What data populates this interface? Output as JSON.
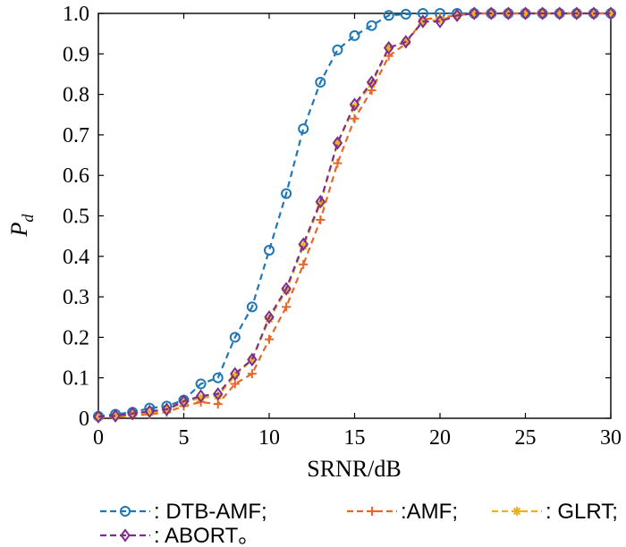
{
  "chart_data": {
    "type": "line",
    "title": "",
    "xlabel": "SRNR/dB",
    "ylabel_main": "P",
    "ylabel_sub": "d",
    "xlim": [
      0,
      30
    ],
    "ylim": [
      0,
      1.0
    ],
    "xticks": [
      0,
      5,
      10,
      15,
      20,
      25,
      30
    ],
    "yticks": [
      0,
      0.1,
      0.2,
      0.3,
      0.4,
      0.5,
      0.6,
      0.7,
      0.8,
      0.9,
      1.0
    ],
    "ytick_labels": [
      "0",
      "0.1",
      "0.2",
      "0.3",
      "0.4",
      "0.5",
      "0.6",
      "0.7",
      "0.8",
      "0.9",
      "1.0"
    ],
    "grid": false,
    "legend_position": "bottom",
    "x": [
      0,
      1,
      2,
      3,
      4,
      5,
      6,
      7,
      8,
      9,
      10,
      11,
      12,
      13,
      14,
      15,
      16,
      17,
      18,
      19,
      20,
      21,
      22,
      23,
      24,
      25,
      26,
      27,
      28,
      29,
      30
    ],
    "series": [
      {
        "name": ": DTB-AMF;",
        "color": "#1f77b4",
        "marker": "circle",
        "values": [
          0.005,
          0.01,
          0.015,
          0.025,
          0.03,
          0.045,
          0.085,
          0.1,
          0.2,
          0.275,
          0.415,
          0.555,
          0.715,
          0.83,
          0.91,
          0.945,
          0.97,
          0.995,
          0.998,
          1.0,
          1.0,
          1.0,
          1.0,
          1.0,
          1.0,
          1.0,
          1.0,
          1.0,
          1.0,
          1.0,
          1.0
        ]
      },
      {
        "name": ":AMF;",
        "color": "#e8662a",
        "marker": "plus",
        "values": [
          0.002,
          0.003,
          0.007,
          0.01,
          0.015,
          0.03,
          0.04,
          0.035,
          0.085,
          0.11,
          0.195,
          0.275,
          0.38,
          0.49,
          0.63,
          0.74,
          0.81,
          0.895,
          0.925,
          0.985,
          0.99,
          0.995,
          1.0,
          1.0,
          1.0,
          1.0,
          1.0,
          1.0,
          1.0,
          1.0,
          1.0
        ]
      },
      {
        "name": ": GLRT;",
        "color": "#edb120",
        "marker": "star",
        "values": [
          0.003,
          0.005,
          0.01,
          0.015,
          0.02,
          0.04,
          0.05,
          0.055,
          0.105,
          0.145,
          0.245,
          0.315,
          0.425,
          0.53,
          0.68,
          0.77,
          0.825,
          0.915,
          0.93,
          0.98,
          0.985,
          0.995,
          1.0,
          1.0,
          1.0,
          1.0,
          1.0,
          1.0,
          1.0,
          1.0,
          1.0
        ]
      },
      {
        "name": ": ABORT。",
        "color": "#7e2f8e",
        "marker": "diamond",
        "values": [
          0.004,
          0.006,
          0.012,
          0.017,
          0.022,
          0.042,
          0.055,
          0.06,
          0.11,
          0.145,
          0.25,
          0.32,
          0.43,
          0.535,
          0.68,
          0.775,
          0.83,
          0.915,
          0.93,
          0.98,
          0.98,
          0.995,
          1.0,
          1.0,
          1.0,
          1.0,
          1.0,
          1.0,
          1.0,
          1.0,
          1.0
        ]
      }
    ]
  }
}
